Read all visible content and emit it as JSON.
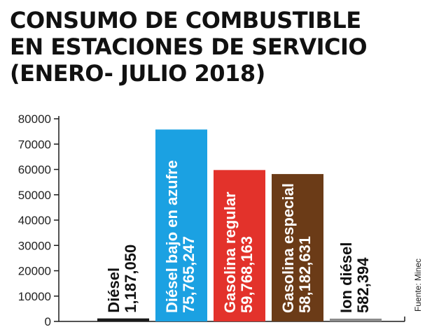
{
  "title": {
    "line1": "CONSUMO DE COMBUSTIBLE",
    "line2": "EN ESTACIONES DE SERVICIO",
    "line3": "(ENERO- JULIO 2018)"
  },
  "source": "Fuente: Minec",
  "colors": {
    "diesel": "#1a1a1a",
    "diesel_bajo_azufre": "#1ba1e2",
    "gasolina_regular": "#e3322b",
    "gasolina_especial": "#6b3b17",
    "ion_diesel": "#8c8c8c",
    "axis": "#1a1a1a"
  },
  "chart_data": {
    "type": "bar",
    "title": "CONSUMO DE COMBUSTIBLE EN ESTACIONES DE SERVICIO (ENERO- JULIO 2018)",
    "ylim": [
      0,
      80000
    ],
    "yticks": [
      "0",
      "10000",
      "20000",
      "30000",
      "40000",
      "50000",
      "60000",
      "70000",
      "80000"
    ],
    "grid": false,
    "bars": [
      {
        "name": "Diésel",
        "label": "1,187,050",
        "value": 1187,
        "color": "#1a1a1a",
        "label_position": "outside"
      },
      {
        "name": "Diésel bajo en azufre",
        "label": "75,765,247",
        "value": 75765,
        "color": "#1ba1e2",
        "label_position": "inside"
      },
      {
        "name": "Gasolina regular",
        "label": "59,768,163",
        "value": 59768,
        "color": "#e3322b",
        "label_position": "inside"
      },
      {
        "name": "Gasolina especial",
        "label": "58,182,631",
        "value": 58183,
        "color": "#6b3b17",
        "label_position": "inside"
      },
      {
        "name": "Ion diésel",
        "label": "582,394",
        "value": 582,
        "color": "#8c8c8c",
        "label_position": "outside"
      }
    ]
  }
}
